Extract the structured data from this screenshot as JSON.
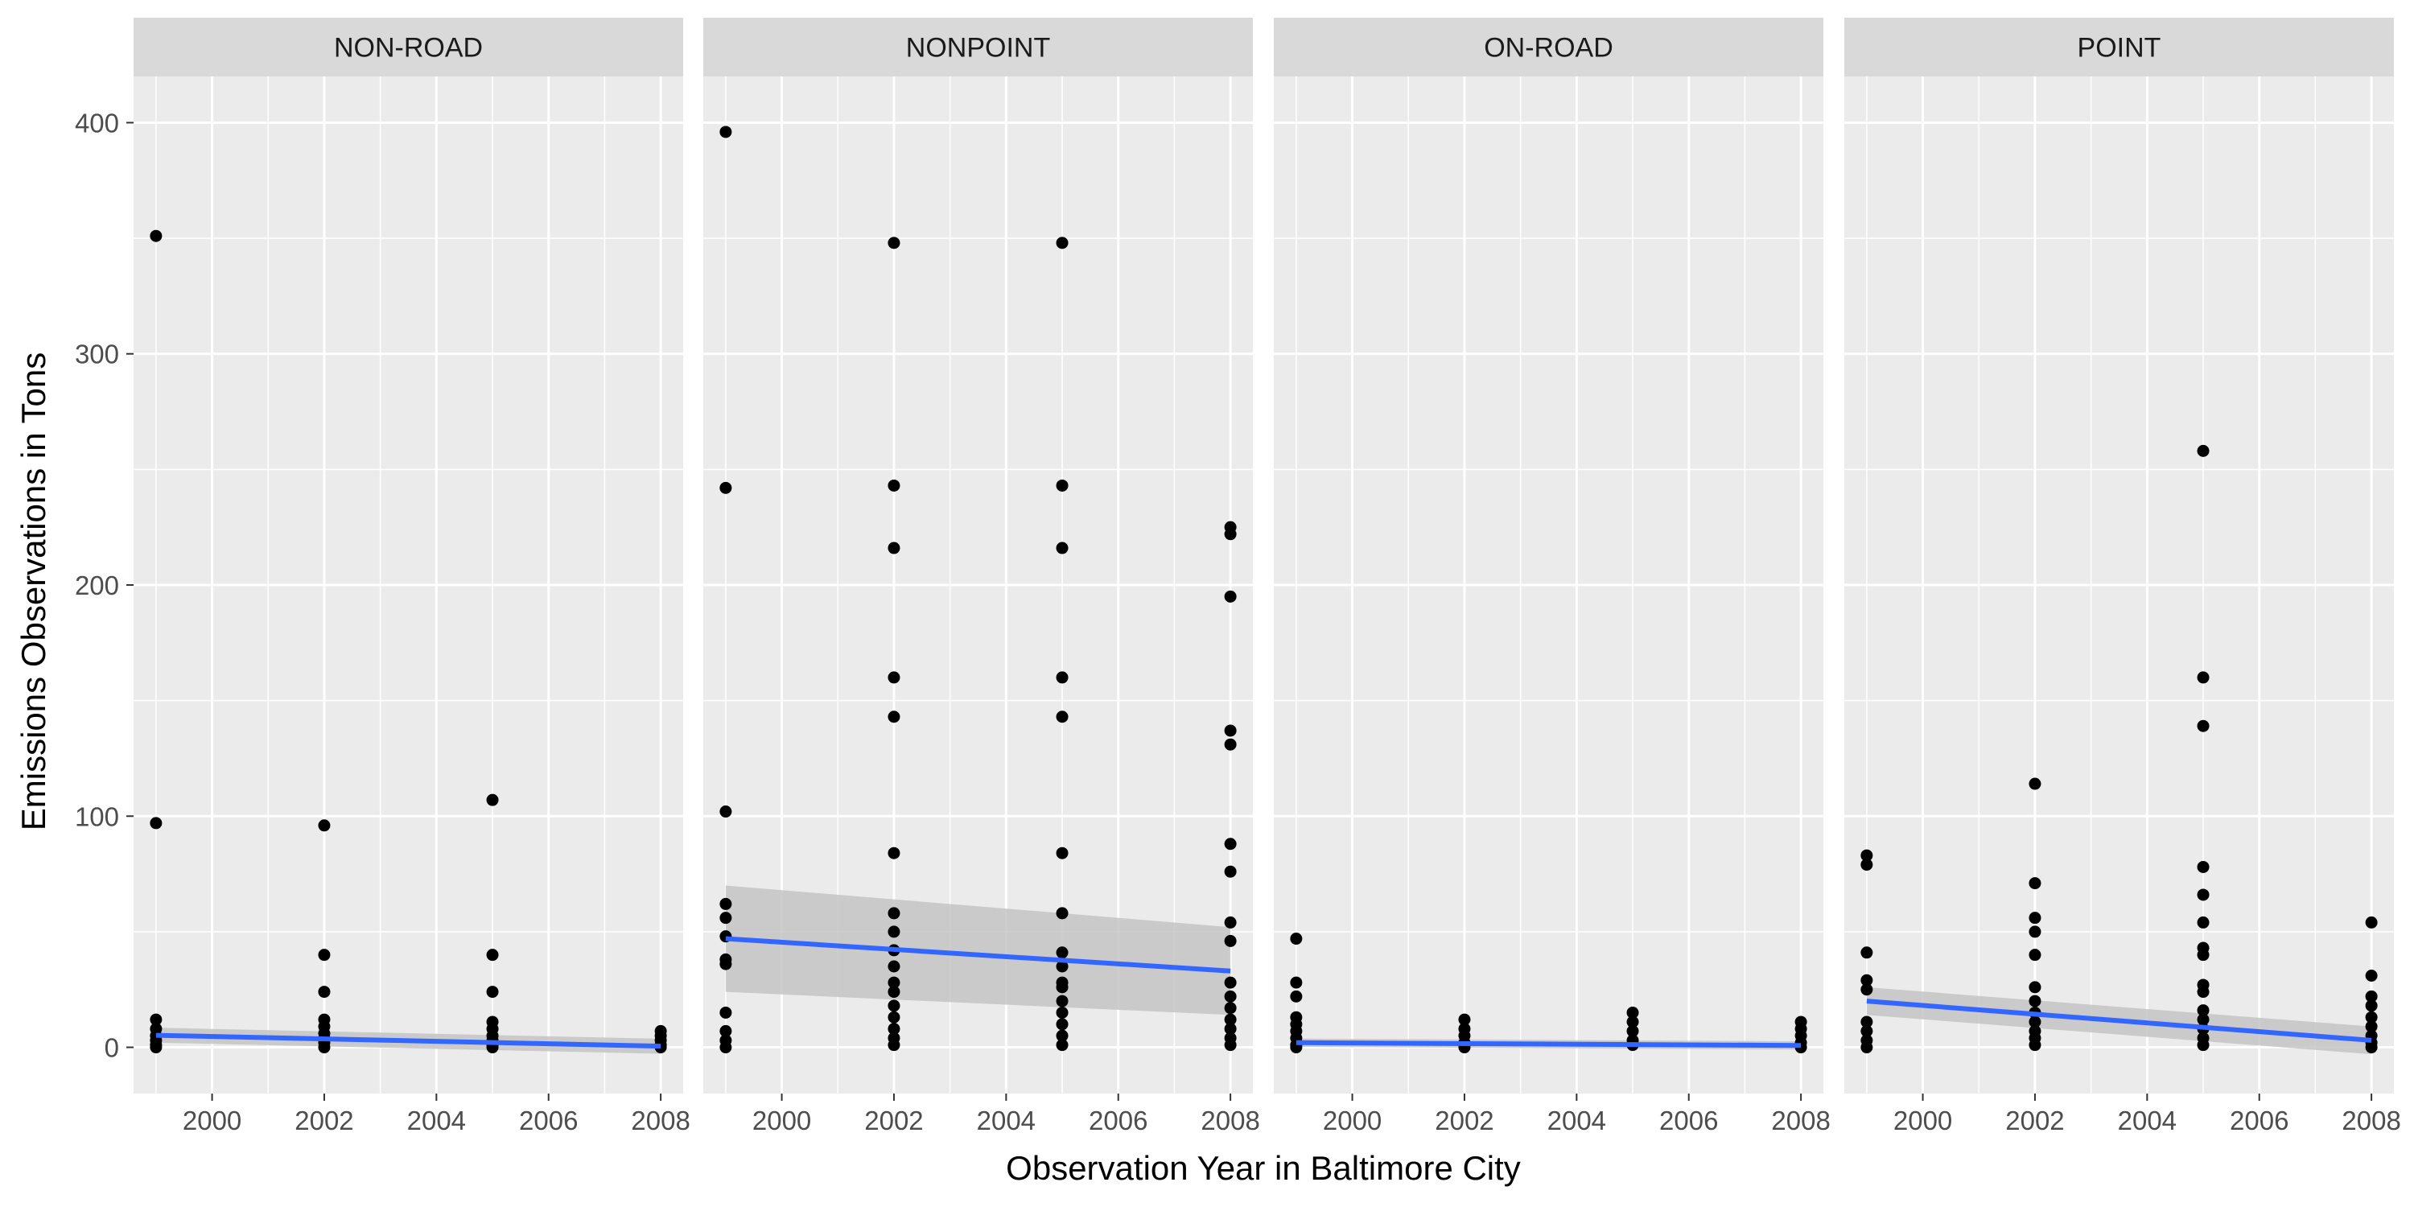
{
  "chart_data": {
    "type": "scatter",
    "facet_by": "type",
    "xlabel": "Observation Year in Baltimore City",
    "ylabel": "Emissions Observations in Tons",
    "xlim": [
      1998.6,
      2008.4
    ],
    "ylim": [
      -20,
      420
    ],
    "x_ticks": [
      2000,
      2002,
      2004,
      2006,
      2008
    ],
    "y_ticks": [
      0,
      100,
      200,
      300,
      400
    ],
    "grid": true,
    "colors": {
      "panel_background": "#ebebeb",
      "strip_background": "#d9d9d9",
      "grid": "#ffffff",
      "points": "#000000",
      "trend_line": "#3366ff",
      "confidence_band": "#c4c4c4"
    },
    "facets": [
      {
        "label": "NON-ROAD",
        "points": [
          {
            "x": 1999,
            "y": 351
          },
          {
            "x": 1999,
            "y": 97
          },
          {
            "x": 1999,
            "y": 12
          },
          {
            "x": 1999,
            "y": 8
          },
          {
            "x": 1999,
            "y": 5
          },
          {
            "x": 1999,
            "y": 3
          },
          {
            "x": 1999,
            "y": 1
          },
          {
            "x": 1999,
            "y": 0
          },
          {
            "x": 2002,
            "y": 96
          },
          {
            "x": 2002,
            "y": 40
          },
          {
            "x": 2002,
            "y": 24
          },
          {
            "x": 2002,
            "y": 12
          },
          {
            "x": 2002,
            "y": 9
          },
          {
            "x": 2002,
            "y": 6
          },
          {
            "x": 2002,
            "y": 4
          },
          {
            "x": 2002,
            "y": 2
          },
          {
            "x": 2002,
            "y": 0
          },
          {
            "x": 2005,
            "y": 107
          },
          {
            "x": 2005,
            "y": 40
          },
          {
            "x": 2005,
            "y": 24
          },
          {
            "x": 2005,
            "y": 11
          },
          {
            "x": 2005,
            "y": 8
          },
          {
            "x": 2005,
            "y": 5
          },
          {
            "x": 2005,
            "y": 3
          },
          {
            "x": 2005,
            "y": 1
          },
          {
            "x": 2005,
            "y": 0
          },
          {
            "x": 2008,
            "y": 7
          },
          {
            "x": 2008,
            "y": 5
          },
          {
            "x": 2008,
            "y": 3
          },
          {
            "x": 2008,
            "y": 1
          },
          {
            "x": 2008,
            "y": 0
          }
        ],
        "fit": {
          "x": [
            1999,
            2008
          ],
          "y": [
            5.2,
            0.5
          ],
          "ci_lower": [
            2.0,
            -2.8
          ],
          "ci_upper": [
            8.5,
            3.7
          ]
        }
      },
      {
        "label": "NONPOINT",
        "points": [
          {
            "x": 1999,
            "y": 396
          },
          {
            "x": 1999,
            "y": 242
          },
          {
            "x": 1999,
            "y": 102
          },
          {
            "x": 1999,
            "y": 62
          },
          {
            "x": 1999,
            "y": 56
          },
          {
            "x": 1999,
            "y": 48
          },
          {
            "x": 1999,
            "y": 38
          },
          {
            "x": 1999,
            "y": 36
          },
          {
            "x": 1999,
            "y": 15
          },
          {
            "x": 1999,
            "y": 7
          },
          {
            "x": 1999,
            "y": 3
          },
          {
            "x": 1999,
            "y": 0
          },
          {
            "x": 2002,
            "y": 348
          },
          {
            "x": 2002,
            "y": 243
          },
          {
            "x": 2002,
            "y": 216
          },
          {
            "x": 2002,
            "y": 160
          },
          {
            "x": 2002,
            "y": 143
          },
          {
            "x": 2002,
            "y": 84
          },
          {
            "x": 2002,
            "y": 58
          },
          {
            "x": 2002,
            "y": 50
          },
          {
            "x": 2002,
            "y": 42
          },
          {
            "x": 2002,
            "y": 35
          },
          {
            "x": 2002,
            "y": 28
          },
          {
            "x": 2002,
            "y": 24
          },
          {
            "x": 2002,
            "y": 18
          },
          {
            "x": 2002,
            "y": 13
          },
          {
            "x": 2002,
            "y": 8
          },
          {
            "x": 2002,
            "y": 4
          },
          {
            "x": 2002,
            "y": 1
          },
          {
            "x": 2005,
            "y": 348
          },
          {
            "x": 2005,
            "y": 243
          },
          {
            "x": 2005,
            "y": 216
          },
          {
            "x": 2005,
            "y": 160
          },
          {
            "x": 2005,
            "y": 143
          },
          {
            "x": 2005,
            "y": 84
          },
          {
            "x": 2005,
            "y": 58
          },
          {
            "x": 2005,
            "y": 41
          },
          {
            "x": 2005,
            "y": 35
          },
          {
            "x": 2005,
            "y": 28
          },
          {
            "x": 2005,
            "y": 26
          },
          {
            "x": 2005,
            "y": 20
          },
          {
            "x": 2005,
            "y": 15
          },
          {
            "x": 2005,
            "y": 10
          },
          {
            "x": 2005,
            "y": 5
          },
          {
            "x": 2005,
            "y": 1
          },
          {
            "x": 2008,
            "y": 225
          },
          {
            "x": 2008,
            "y": 222
          },
          {
            "x": 2008,
            "y": 195
          },
          {
            "x": 2008,
            "y": 137
          },
          {
            "x": 2008,
            "y": 131
          },
          {
            "x": 2008,
            "y": 88
          },
          {
            "x": 2008,
            "y": 76
          },
          {
            "x": 2008,
            "y": 54
          },
          {
            "x": 2008,
            "y": 46
          },
          {
            "x": 2008,
            "y": 28
          },
          {
            "x": 2008,
            "y": 22
          },
          {
            "x": 2008,
            "y": 17
          },
          {
            "x": 2008,
            "y": 12
          },
          {
            "x": 2008,
            "y": 8
          },
          {
            "x": 2008,
            "y": 4
          },
          {
            "x": 2008,
            "y": 1
          }
        ],
        "fit": {
          "x": [
            1999,
            2008
          ],
          "y": [
            47,
            33
          ],
          "ci_lower": [
            24,
            14
          ],
          "ci_upper": [
            70,
            52
          ]
        }
      },
      {
        "label": "ON-ROAD",
        "points": [
          {
            "x": 1999,
            "y": 47
          },
          {
            "x": 1999,
            "y": 28
          },
          {
            "x": 1999,
            "y": 22
          },
          {
            "x": 1999,
            "y": 13
          },
          {
            "x": 1999,
            "y": 10
          },
          {
            "x": 1999,
            "y": 7
          },
          {
            "x": 1999,
            "y": 4
          },
          {
            "x": 1999,
            "y": 1
          },
          {
            "x": 1999,
            "y": 0
          },
          {
            "x": 2002,
            "y": 12
          },
          {
            "x": 2002,
            "y": 8
          },
          {
            "x": 2002,
            "y": 5
          },
          {
            "x": 2002,
            "y": 2
          },
          {
            "x": 2002,
            "y": 0
          },
          {
            "x": 2005,
            "y": 15
          },
          {
            "x": 2005,
            "y": 11
          },
          {
            "x": 2005,
            "y": 7
          },
          {
            "x": 2005,
            "y": 3
          },
          {
            "x": 2005,
            "y": 1
          },
          {
            "x": 2008,
            "y": 11
          },
          {
            "x": 2008,
            "y": 8
          },
          {
            "x": 2008,
            "y": 5
          },
          {
            "x": 2008,
            "y": 2
          },
          {
            "x": 2008,
            "y": 0
          }
        ],
        "fit": {
          "x": [
            1999,
            2008
          ],
          "y": [
            2.0,
            0.8
          ],
          "ci_lower": [
            0.2,
            -1.0
          ],
          "ci_upper": [
            3.8,
            2.6
          ]
        }
      },
      {
        "label": "POINT",
        "points": [
          {
            "x": 1999,
            "y": 83
          },
          {
            "x": 1999,
            "y": 79
          },
          {
            "x": 1999,
            "y": 41
          },
          {
            "x": 1999,
            "y": 29
          },
          {
            "x": 1999,
            "y": 25
          },
          {
            "x": 1999,
            "y": 11
          },
          {
            "x": 1999,
            "y": 7
          },
          {
            "x": 1999,
            "y": 3
          },
          {
            "x": 1999,
            "y": 0
          },
          {
            "x": 2002,
            "y": 114
          },
          {
            "x": 2002,
            "y": 71
          },
          {
            "x": 2002,
            "y": 56
          },
          {
            "x": 2002,
            "y": 50
          },
          {
            "x": 2002,
            "y": 40
          },
          {
            "x": 2002,
            "y": 26
          },
          {
            "x": 2002,
            "y": 20
          },
          {
            "x": 2002,
            "y": 15
          },
          {
            "x": 2002,
            "y": 11
          },
          {
            "x": 2002,
            "y": 7
          },
          {
            "x": 2002,
            "y": 4
          },
          {
            "x": 2002,
            "y": 1
          },
          {
            "x": 2005,
            "y": 258
          },
          {
            "x": 2005,
            "y": 160
          },
          {
            "x": 2005,
            "y": 139
          },
          {
            "x": 2005,
            "y": 78
          },
          {
            "x": 2005,
            "y": 66
          },
          {
            "x": 2005,
            "y": 54
          },
          {
            "x": 2005,
            "y": 43
          },
          {
            "x": 2005,
            "y": 40
          },
          {
            "x": 2005,
            "y": 27
          },
          {
            "x": 2005,
            "y": 24
          },
          {
            "x": 2005,
            "y": 16
          },
          {
            "x": 2005,
            "y": 12
          },
          {
            "x": 2005,
            "y": 8
          },
          {
            "x": 2005,
            "y": 4
          },
          {
            "x": 2005,
            "y": 1
          },
          {
            "x": 2008,
            "y": 54
          },
          {
            "x": 2008,
            "y": 31
          },
          {
            "x": 2008,
            "y": 22
          },
          {
            "x": 2008,
            "y": 18
          },
          {
            "x": 2008,
            "y": 13
          },
          {
            "x": 2008,
            "y": 9
          },
          {
            "x": 2008,
            "y": 5
          },
          {
            "x": 2008,
            "y": 2
          },
          {
            "x": 2008,
            "y": 0
          }
        ],
        "fit": {
          "x": [
            1999,
            2008
          ],
          "y": [
            20,
            3
          ],
          "ci_lower": [
            14,
            -3
          ],
          "ci_upper": [
            26,
            9
          ]
        }
      }
    ]
  }
}
